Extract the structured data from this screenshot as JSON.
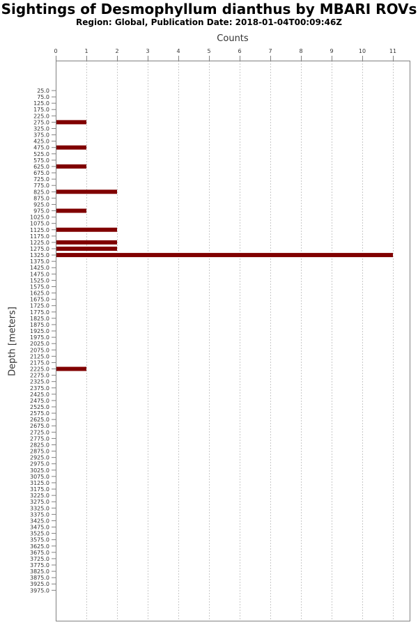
{
  "chart_data": {
    "type": "bar",
    "orientation": "horizontal",
    "title": "Sightings of Desmophyllum dianthus by MBARI ROVs",
    "subtitle": "Region: Global, Publication Date: 2018-01-04T00:09:46Z",
    "xlabel": "Counts",
    "ylabel": "Depth [meters]",
    "xlim": [
      0,
      11.5
    ],
    "x_ticks": [
      "0",
      "1",
      "2",
      "3",
      "4",
      "5",
      "6",
      "7",
      "8",
      "9",
      "10",
      "11"
    ],
    "grid": true,
    "categories": [
      "25.0",
      "75.0",
      "125.0",
      "175.0",
      "225.0",
      "275.0",
      "325.0",
      "375.0",
      "425.0",
      "475.0",
      "525.0",
      "575.0",
      "625.0",
      "675.0",
      "725.0",
      "775.0",
      "825.0",
      "875.0",
      "925.0",
      "975.0",
      "1025.0",
      "1075.0",
      "1125.0",
      "1175.0",
      "1225.0",
      "1275.0",
      "1325.0",
      "1375.0",
      "1425.0",
      "1475.0",
      "1525.0",
      "1575.0",
      "1625.0",
      "1675.0",
      "1725.0",
      "1775.0",
      "1825.0",
      "1875.0",
      "1925.0",
      "1975.0",
      "2025.0",
      "2075.0",
      "2125.0",
      "2175.0",
      "2225.0",
      "2275.0",
      "2325.0",
      "2375.0",
      "2425.0",
      "2475.0",
      "2525.0",
      "2575.0",
      "2625.0",
      "2675.0",
      "2725.0",
      "2775.0",
      "2825.0",
      "2875.0",
      "2925.0",
      "2975.0",
      "3025.0",
      "3075.0",
      "3125.0",
      "3175.0",
      "3225.0",
      "3275.0",
      "3325.0",
      "3375.0",
      "3425.0",
      "3475.0",
      "3525.0",
      "3575.0",
      "3625.0",
      "3675.0",
      "3725.0",
      "3775.0",
      "3825.0",
      "3875.0",
      "3925.0",
      "3975.0"
    ],
    "values": [
      0,
      0,
      0,
      0,
      0,
      1,
      0,
      0,
      0,
      1,
      0,
      0,
      1,
      0,
      0,
      0,
      2,
      0,
      0,
      1,
      0,
      0,
      2,
      0,
      2,
      2,
      11,
      0,
      0,
      0,
      0,
      0,
      0,
      0,
      0,
      0,
      0,
      0,
      0,
      0,
      0,
      0,
      0,
      0,
      1,
      0,
      0,
      0,
      0,
      0,
      0,
      0,
      0,
      0,
      0,
      0,
      0,
      0,
      0,
      0,
      0,
      0,
      0,
      0,
      0,
      0,
      0,
      0,
      0,
      0,
      0,
      0,
      0,
      0,
      0,
      0,
      0,
      0,
      0,
      0
    ],
    "bar_color": "#800000"
  }
}
